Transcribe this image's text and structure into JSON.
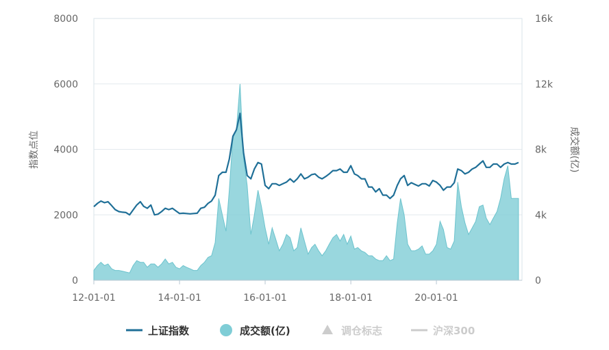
{
  "chart_data": {
    "type": "line",
    "title": "",
    "y_left": {
      "label": "指数点位",
      "ticks": [
        "0",
        "2000",
        "4000",
        "6000",
        "8000"
      ],
      "range": [
        0,
        8000
      ]
    },
    "y_right": {
      "label": "成交额(亿)",
      "ticks": [
        "0",
        "4k",
        "8k",
        "12k",
        "16k"
      ],
      "range": [
        0,
        16000
      ]
    },
    "x_axis": {
      "ticks": [
        "12-01-01",
        "14-01-01",
        "16-01-01",
        "18-01-01",
        "20-01-01"
      ],
      "range": [
        "2012-01-01",
        "2021-12-31"
      ]
    },
    "grid": "horizontal",
    "legend_position": "bottom",
    "legend": [
      {
        "name": "上证指数",
        "symbol": "line",
        "color": "#1f6f97",
        "active": true
      },
      {
        "name": "成交额(亿)",
        "symbol": "circle",
        "color": "#7fcdd6",
        "active": true
      },
      {
        "name": "调仓标志",
        "symbol": "triangle",
        "color": "#cccccc",
        "active": false
      },
      {
        "name": "沪深300",
        "symbol": "line",
        "color": "#cccccc",
        "active": false
      }
    ],
    "series": [
      {
        "name": "上证指数",
        "axis": "left",
        "color": "#1f6f97",
        "points": [
          [
            "2012-01-01",
            2250
          ],
          [
            "2012-02-01",
            2350
          ],
          [
            "2012-03-01",
            2420
          ],
          [
            "2012-04-01",
            2370
          ],
          [
            "2012-05-01",
            2400
          ],
          [
            "2012-06-01",
            2280
          ],
          [
            "2012-07-01",
            2160
          ],
          [
            "2012-08-01",
            2100
          ],
          [
            "2012-09-01",
            2080
          ],
          [
            "2012-10-01",
            2070
          ],
          [
            "2012-11-01",
            2000
          ],
          [
            "2012-12-01",
            2150
          ],
          [
            "2013-01-01",
            2300
          ],
          [
            "2013-02-01",
            2400
          ],
          [
            "2013-03-01",
            2260
          ],
          [
            "2013-04-01",
            2200
          ],
          [
            "2013-05-01",
            2300
          ],
          [
            "2013-06-01",
            2000
          ],
          [
            "2013-07-01",
            2020
          ],
          [
            "2013-08-01",
            2100
          ],
          [
            "2013-09-01",
            2200
          ],
          [
            "2013-10-01",
            2160
          ],
          [
            "2013-11-01",
            2200
          ],
          [
            "2013-12-01",
            2120
          ],
          [
            "2014-01-01",
            2040
          ],
          [
            "2014-02-01",
            2050
          ],
          [
            "2014-03-01",
            2040
          ],
          [
            "2014-04-01",
            2030
          ],
          [
            "2014-05-01",
            2040
          ],
          [
            "2014-06-01",
            2050
          ],
          [
            "2014-07-01",
            2200
          ],
          [
            "2014-08-01",
            2230
          ],
          [
            "2014-09-01",
            2350
          ],
          [
            "2014-10-01",
            2420
          ],
          [
            "2014-11-01",
            2600
          ],
          [
            "2014-12-01",
            3200
          ],
          [
            "2015-01-01",
            3300
          ],
          [
            "2015-02-01",
            3300
          ],
          [
            "2015-03-01",
            3700
          ],
          [
            "2015-04-01",
            4400
          ],
          [
            "2015-05-01",
            4600
          ],
          [
            "2015-06-01",
            5100
          ],
          [
            "2015-07-01",
            3900
          ],
          [
            "2015-08-01",
            3200
          ],
          [
            "2015-09-01",
            3100
          ],
          [
            "2015-10-01",
            3400
          ],
          [
            "2015-11-01",
            3600
          ],
          [
            "2015-12-01",
            3550
          ],
          [
            "2016-01-01",
            2900
          ],
          [
            "2016-02-01",
            2800
          ],
          [
            "2016-03-01",
            2950
          ],
          [
            "2016-04-01",
            2950
          ],
          [
            "2016-05-01",
            2900
          ],
          [
            "2016-06-01",
            2950
          ],
          [
            "2016-07-01",
            3000
          ],
          [
            "2016-08-01",
            3100
          ],
          [
            "2016-09-01",
            3000
          ],
          [
            "2016-10-01",
            3100
          ],
          [
            "2016-11-01",
            3250
          ],
          [
            "2016-12-01",
            3100
          ],
          [
            "2017-01-01",
            3150
          ],
          [
            "2017-02-01",
            3230
          ],
          [
            "2017-03-01",
            3250
          ],
          [
            "2017-04-01",
            3150
          ],
          [
            "2017-05-01",
            3100
          ],
          [
            "2017-06-01",
            3170
          ],
          [
            "2017-07-01",
            3250
          ],
          [
            "2017-08-01",
            3350
          ],
          [
            "2017-09-01",
            3350
          ],
          [
            "2017-10-01",
            3400
          ],
          [
            "2017-11-01",
            3300
          ],
          [
            "2017-12-01",
            3300
          ],
          [
            "2018-01-01",
            3500
          ],
          [
            "2018-02-01",
            3250
          ],
          [
            "2018-03-01",
            3200
          ],
          [
            "2018-04-01",
            3100
          ],
          [
            "2018-05-01",
            3100
          ],
          [
            "2018-06-01",
            2850
          ],
          [
            "2018-07-01",
            2850
          ],
          [
            "2018-08-01",
            2700
          ],
          [
            "2018-09-01",
            2800
          ],
          [
            "2018-10-01",
            2600
          ],
          [
            "2018-11-01",
            2600
          ],
          [
            "2018-12-01",
            2500
          ],
          [
            "2019-01-01",
            2600
          ],
          [
            "2019-02-01",
            2900
          ],
          [
            "2019-03-01",
            3100
          ],
          [
            "2019-04-01",
            3200
          ],
          [
            "2019-05-01",
            2900
          ],
          [
            "2019-06-01",
            2980
          ],
          [
            "2019-07-01",
            2930
          ],
          [
            "2019-08-01",
            2880
          ],
          [
            "2019-09-01",
            2950
          ],
          [
            "2019-10-01",
            2950
          ],
          [
            "2019-11-01",
            2880
          ],
          [
            "2019-12-01",
            3050
          ],
          [
            "2020-01-01",
            3000
          ],
          [
            "2020-02-01",
            2900
          ],
          [
            "2020-03-01",
            2750
          ],
          [
            "2020-04-01",
            2850
          ],
          [
            "2020-05-01",
            2850
          ],
          [
            "2020-06-01",
            2980
          ],
          [
            "2020-07-01",
            3400
          ],
          [
            "2020-08-01",
            3350
          ],
          [
            "2020-09-01",
            3250
          ],
          [
            "2020-10-01",
            3300
          ],
          [
            "2020-11-01",
            3400
          ],
          [
            "2020-12-01",
            3450
          ],
          [
            "2021-01-01",
            3550
          ],
          [
            "2021-02-01",
            3650
          ],
          [
            "2021-03-01",
            3450
          ],
          [
            "2021-04-01",
            3450
          ],
          [
            "2021-05-01",
            3550
          ],
          [
            "2021-06-01",
            3550
          ],
          [
            "2021-07-01",
            3450
          ],
          [
            "2021-08-01",
            3550
          ],
          [
            "2021-09-01",
            3600
          ],
          [
            "2021-10-01",
            3550
          ],
          [
            "2021-11-01",
            3550
          ],
          [
            "2021-12-01",
            3600
          ]
        ]
      },
      {
        "name": "成交额(亿)",
        "axis": "right",
        "color": "#7fcdd6",
        "points": [
          [
            "2012-01-01",
            600
          ],
          [
            "2012-02-01",
            900
          ],
          [
            "2012-03-01",
            1100
          ],
          [
            "2012-04-01",
            900
          ],
          [
            "2012-05-01",
            1000
          ],
          [
            "2012-06-01",
            700
          ],
          [
            "2012-07-01",
            600
          ],
          [
            "2012-08-01",
            600
          ],
          [
            "2012-09-01",
            550
          ],
          [
            "2012-10-01",
            500
          ],
          [
            "2012-11-01",
            450
          ],
          [
            "2012-12-01",
            900
          ],
          [
            "2013-01-01",
            1200
          ],
          [
            "2013-02-01",
            1100
          ],
          [
            "2013-03-01",
            1100
          ],
          [
            "2013-04-01",
            800
          ],
          [
            "2013-05-01",
            1000
          ],
          [
            "2013-06-01",
            1000
          ],
          [
            "2013-07-01",
            800
          ],
          [
            "2013-08-01",
            1000
          ],
          [
            "2013-09-01",
            1300
          ],
          [
            "2013-10-01",
            1000
          ],
          [
            "2013-11-01",
            1100
          ],
          [
            "2013-12-01",
            800
          ],
          [
            "2014-01-01",
            700
          ],
          [
            "2014-02-01",
            900
          ],
          [
            "2014-03-01",
            800
          ],
          [
            "2014-04-01",
            700
          ],
          [
            "2014-05-01",
            600
          ],
          [
            "2014-06-01",
            600
          ],
          [
            "2014-07-01",
            900
          ],
          [
            "2014-08-01",
            1100
          ],
          [
            "2014-09-01",
            1400
          ],
          [
            "2014-10-01",
            1500
          ],
          [
            "2014-11-01",
            2300
          ],
          [
            "2014-12-01",
            5000
          ],
          [
            "2015-01-01",
            4000
          ],
          [
            "2015-02-01",
            3000
          ],
          [
            "2015-03-01",
            5500
          ],
          [
            "2015-04-01",
            8800
          ],
          [
            "2015-05-01",
            9200
          ],
          [
            "2015-06-01",
            12000
          ],
          [
            "2015-07-01",
            7500
          ],
          [
            "2015-08-01",
            5800
          ],
          [
            "2015-09-01",
            2800
          ],
          [
            "2015-10-01",
            4000
          ],
          [
            "2015-11-01",
            5500
          ],
          [
            "2015-12-01",
            4500
          ],
          [
            "2016-01-01",
            3200
          ],
          [
            "2016-02-01",
            2200
          ],
          [
            "2016-03-01",
            3200
          ],
          [
            "2016-04-01",
            2500
          ],
          [
            "2016-05-01",
            1800
          ],
          [
            "2016-06-01",
            2200
          ],
          [
            "2016-07-01",
            2800
          ],
          [
            "2016-08-01",
            2600
          ],
          [
            "2016-09-01",
            1800
          ],
          [
            "2016-10-01",
            2000
          ],
          [
            "2016-11-01",
            3200
          ],
          [
            "2016-12-01",
            2400
          ],
          [
            "2017-01-01",
            1600
          ],
          [
            "2017-02-01",
            2000
          ],
          [
            "2017-03-01",
            2200
          ],
          [
            "2017-04-01",
            1800
          ],
          [
            "2017-05-01",
            1500
          ],
          [
            "2017-06-01",
            1800
          ],
          [
            "2017-07-01",
            2200
          ],
          [
            "2017-08-01",
            2600
          ],
          [
            "2017-09-01",
            2800
          ],
          [
            "2017-10-01",
            2400
          ],
          [
            "2017-11-01",
            2800
          ],
          [
            "2017-12-01",
            2200
          ],
          [
            "2018-01-01",
            2700
          ],
          [
            "2018-02-01",
            1900
          ],
          [
            "2018-03-01",
            2000
          ],
          [
            "2018-04-01",
            1800
          ],
          [
            "2018-05-01",
            1700
          ],
          [
            "2018-06-01",
            1500
          ],
          [
            "2018-07-01",
            1500
          ],
          [
            "2018-08-01",
            1300
          ],
          [
            "2018-09-01",
            1200
          ],
          [
            "2018-10-01",
            1200
          ],
          [
            "2018-11-01",
            1500
          ],
          [
            "2018-12-01",
            1200
          ],
          [
            "2019-01-01",
            1300
          ],
          [
            "2019-02-01",
            3500
          ],
          [
            "2019-03-01",
            5000
          ],
          [
            "2019-04-01",
            4000
          ],
          [
            "2019-05-01",
            2200
          ],
          [
            "2019-06-01",
            1800
          ],
          [
            "2019-07-01",
            1800
          ],
          [
            "2019-08-01",
            1900
          ],
          [
            "2019-09-01",
            2100
          ],
          [
            "2019-10-01",
            1600
          ],
          [
            "2019-11-01",
            1600
          ],
          [
            "2019-12-01",
            1800
          ],
          [
            "2020-01-01",
            2200
          ],
          [
            "2020-02-01",
            3600
          ],
          [
            "2020-03-01",
            3100
          ],
          [
            "2020-04-01",
            2000
          ],
          [
            "2020-05-01",
            1900
          ],
          [
            "2020-06-01",
            2400
          ],
          [
            "2020-07-01",
            6000
          ],
          [
            "2020-08-01",
            4500
          ],
          [
            "2020-09-01",
            3500
          ],
          [
            "2020-10-01",
            2800
          ],
          [
            "2020-11-01",
            3200
          ],
          [
            "2020-12-01",
            3600
          ],
          [
            "2021-01-01",
            4500
          ],
          [
            "2021-02-01",
            4600
          ],
          [
            "2021-03-01",
            3800
          ],
          [
            "2021-04-01",
            3400
          ],
          [
            "2021-05-01",
            3800
          ],
          [
            "2021-06-01",
            4200
          ],
          [
            "2021-07-01",
            5000
          ],
          [
            "2021-08-01",
            6200
          ],
          [
            "2021-09-01",
            7000
          ],
          [
            "2021-10-01",
            5000
          ],
          [
            "2021-11-01",
            5000
          ],
          [
            "2021-12-01",
            5000
          ]
        ]
      }
    ]
  }
}
